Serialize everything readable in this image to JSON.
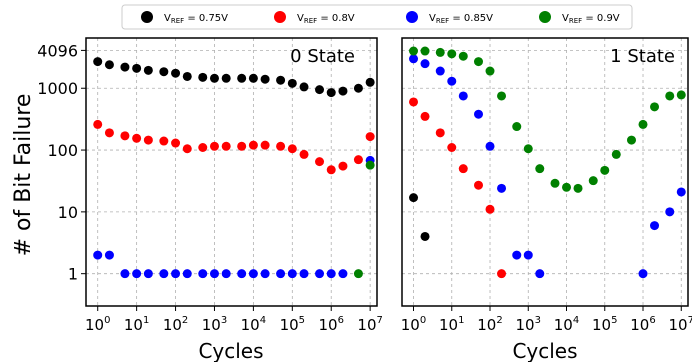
{
  "legend": {
    "placement": "top-center",
    "entries": [
      {
        "label_main": "V",
        "label_sub": "REF",
        "label_rest": " = 0.75V",
        "color": "#000000"
      },
      {
        "label_main": "V",
        "label_sub": "REF",
        "label_rest": " = 0.8V",
        "color": "#ff0000"
      },
      {
        "label_main": "V",
        "label_sub": "REF",
        "label_rest": " = 0.85V",
        "color": "#0000ff"
      },
      {
        "label_main": "V",
        "label_sub": "REF",
        "label_rest": " = 0.9V",
        "color": "#008000"
      }
    ]
  },
  "ylabel": "# of Bit Failure",
  "chart_data": [
    {
      "type": "scatter",
      "title": "0 State",
      "xlabel": "Cycles",
      "xscale": "log",
      "yscale": "log",
      "xlim": [
        0.5,
        15000000
      ],
      "ylim": [
        0.3,
        6500
      ],
      "x_ticks": [
        {
          "base": "10",
          "exp": "0"
        },
        {
          "base": "10",
          "exp": "1"
        },
        {
          "base": "10",
          "exp": "2"
        },
        {
          "base": "10",
          "exp": "3"
        },
        {
          "base": "10",
          "exp": "4"
        },
        {
          "base": "10",
          "exp": "5"
        },
        {
          "base": "10",
          "exp": "6"
        },
        {
          "base": "10",
          "exp": "7"
        }
      ],
      "y_ticks": [
        "1",
        "10",
        "100",
        "1000",
        "4096"
      ],
      "grid": true,
      "series": [
        {
          "color": "#000000",
          "x": [
            1,
            2,
            5,
            10,
            20,
            50,
            100,
            200,
            500,
            1000,
            2000,
            5000,
            10000,
            20000,
            50000,
            100000,
            200000,
            500000,
            1000000,
            2000000,
            5000000,
            10000000
          ],
          "y": [
            2700,
            2400,
            2200,
            2100,
            1950,
            1850,
            1750,
            1550,
            1500,
            1450,
            1450,
            1450,
            1450,
            1400,
            1350,
            1200,
            1050,
            950,
            850,
            900,
            1000,
            1250
          ]
        },
        {
          "color": "#ff0000",
          "x": [
            1,
            2,
            5,
            10,
            20,
            50,
            100,
            200,
            500,
            1000,
            2000,
            5000,
            10000,
            20000,
            50000,
            100000,
            200000,
            500000,
            1000000,
            2000000,
            5000000,
            10000000
          ],
          "y": [
            260,
            190,
            170,
            155,
            145,
            140,
            130,
            105,
            110,
            115,
            115,
            115,
            120,
            120,
            115,
            105,
            85,
            65,
            48,
            55,
            70,
            165
          ]
        },
        {
          "color": "#0000ff",
          "x": [
            1,
            2,
            5,
            10,
            20,
            50,
            100,
            200,
            500,
            1000,
            2000,
            5000,
            10000,
            20000,
            50000,
            100000,
            200000,
            500000,
            1000000,
            2000000,
            10000000
          ],
          "y": [
            2,
            2,
            1,
            1,
            1,
            1,
            1,
            1,
            1,
            1,
            1,
            1,
            1,
            1,
            1,
            1,
            1,
            1,
            1,
            1,
            68
          ]
        },
        {
          "color": "#008000",
          "x": [
            5000000,
            10000000
          ],
          "y": [
            1,
            57
          ]
        }
      ]
    },
    {
      "type": "scatter",
      "title": "1 State",
      "xlabel": "Cycles",
      "xscale": "log",
      "yscale": "log",
      "xlim": [
        0.5,
        15000000
      ],
      "ylim": [
        0.3,
        6500
      ],
      "x_ticks": [
        {
          "base": "10",
          "exp": "0"
        },
        {
          "base": "10",
          "exp": "1"
        },
        {
          "base": "10",
          "exp": "2"
        },
        {
          "base": "10",
          "exp": "3"
        },
        {
          "base": "10",
          "exp": "4"
        },
        {
          "base": "10",
          "exp": "5"
        },
        {
          "base": "10",
          "exp": "6"
        },
        {
          "base": "10",
          "exp": "7"
        }
      ],
      "y_ticks": [],
      "grid": true,
      "series": [
        {
          "color": "#000000",
          "x": [
            1,
            2
          ],
          "y": [
            17,
            4
          ]
        },
        {
          "color": "#ff0000",
          "x": [
            1,
            2,
            5,
            10,
            20,
            50,
            100,
            200
          ],
          "y": [
            600,
            350,
            190,
            110,
            50,
            27,
            11,
            1
          ]
        },
        {
          "color": "#0000ff",
          "x": [
            1,
            2,
            5,
            10,
            20,
            50,
            100,
            200,
            500,
            1000,
            2000,
            1000000,
            2000000,
            5000000,
            10000000
          ],
          "y": [
            3000,
            2500,
            1900,
            1300,
            750,
            380,
            115,
            24,
            2,
            2,
            1,
            1,
            6,
            10,
            21
          ]
        },
        {
          "color": "#008000",
          "x": [
            1,
            2,
            5,
            10,
            20,
            50,
            100,
            200,
            500,
            1000,
            2000,
            5000,
            10000,
            20000,
            50000,
            100000,
            200000,
            500000,
            1000000,
            2000000,
            5000000,
            10000000
          ],
          "y": [
            4000,
            4000,
            3800,
            3600,
            3300,
            2700,
            1900,
            750,
            240,
            105,
            50,
            29,
            25,
            24,
            32,
            47,
            85,
            145,
            260,
            500,
            750,
            780
          ]
        }
      ]
    }
  ]
}
